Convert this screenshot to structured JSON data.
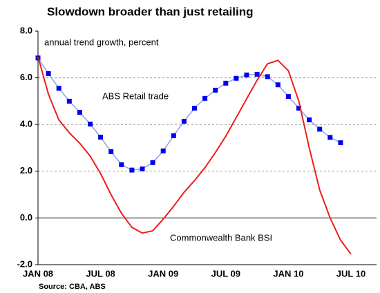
{
  "chart_data": {
    "type": "line",
    "title": "Slowdown broader than just retailing",
    "subtitle": "annual trend growth, percent",
    "source": "Source: CBA, ABS",
    "categories": [
      "JAN 08",
      null,
      null,
      null,
      null,
      null,
      "JUL 08",
      null,
      null,
      null,
      null,
      null,
      "JAN 09",
      null,
      null,
      null,
      null,
      null,
      "JUL 09",
      null,
      null,
      null,
      null,
      null,
      "JAN 10",
      null,
      null,
      null,
      null,
      null,
      "JUL 10"
    ],
    "series": [
      {
        "name": "ABS Retail trade",
        "color": "#8da0e8",
        "marker_color": "#0000ee",
        "values": [
          6.85,
          6.18,
          5.55,
          5.0,
          4.52,
          4.02,
          3.46,
          2.84,
          2.28,
          2.05,
          2.1,
          2.37,
          2.87,
          3.52,
          4.14,
          4.7,
          5.12,
          5.47,
          5.77,
          5.98,
          6.12,
          6.15,
          6.05,
          5.7,
          5.2,
          4.7,
          4.2,
          3.8,
          3.45,
          3.22,
          null
        ]
      },
      {
        "name": "Commonwealth Bank BSI",
        "color": "#ee1c1c",
        "values": [
          6.9,
          5.3,
          4.2,
          3.65,
          3.2,
          2.65,
          1.9,
          1.0,
          0.2,
          -0.4,
          -0.65,
          -0.55,
          -0.05,
          0.5,
          1.1,
          1.6,
          2.15,
          2.8,
          3.5,
          4.3,
          5.1,
          5.9,
          6.6,
          6.75,
          6.3,
          5.0,
          3.0,
          1.2,
          0.0,
          -0.95,
          -1.55
        ]
      }
    ],
    "ylim": [
      -2,
      8
    ],
    "yticks": [
      {
        "value": -2,
        "label": "-2.0"
      },
      {
        "value": 0,
        "label": "0.0"
      },
      {
        "value": 2,
        "label": "2.0"
      },
      {
        "value": 4,
        "label": "4.0"
      },
      {
        "value": 6,
        "label": "6.0"
      },
      {
        "value": 8,
        "label": "8.0"
      }
    ],
    "grid": true
  }
}
